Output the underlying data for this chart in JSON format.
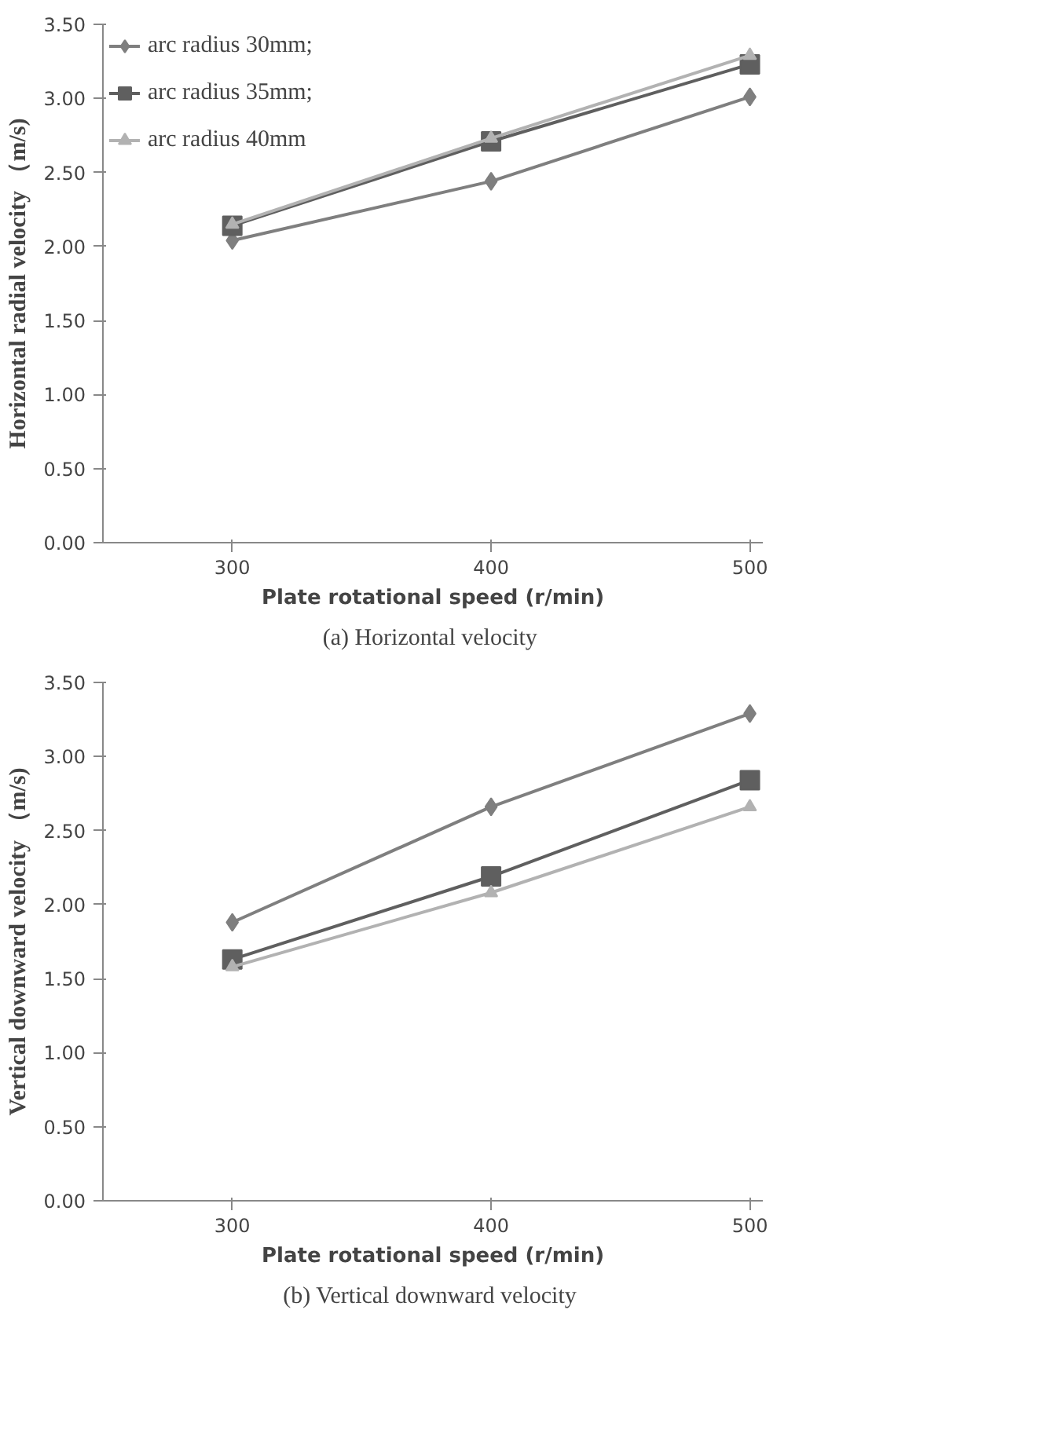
{
  "chart_data": [
    {
      "type": "line",
      "xlabel": "Plate rotational speed (r/min)",
      "ylabel": "Horizontal radial velocity （m/s)",
      "x": [
        300,
        400,
        500
      ],
      "xlim": [
        250,
        505
      ],
      "xticks": [
        300,
        400,
        500
      ],
      "ylim": [
        0,
        3.5
      ],
      "yticks": [
        {
          "value": 0,
          "label": "0.00"
        },
        {
          "value": 0.5,
          "label": "0.50"
        },
        {
          "value": 1,
          "label": "1.00"
        },
        {
          "value": 1.5,
          "label": "1.50"
        },
        {
          "value": 2,
          "label": "2.00"
        },
        {
          "value": 2.5,
          "label": "2.50"
        },
        {
          "value": 3,
          "label": "3.00"
        },
        {
          "value": 3.5,
          "label": "3.50"
        }
      ],
      "grid": false,
      "legend": "top left",
      "series": [
        {
          "name": "arc radius 30mm;",
          "color": "#7f7f7f",
          "marker": "diamond",
          "values": [
            2.04,
            2.44,
            3.01
          ]
        },
        {
          "name": "arc radius 35mm;",
          "color": "#5f5f5f",
          "marker": "square",
          "values": [
            2.14,
            2.71,
            3.23
          ]
        },
        {
          "name": "arc radius 40mm",
          "color": "#b2b2b2",
          "marker": "triangle",
          "values": [
            2.15,
            2.73,
            3.29
          ]
        }
      ],
      "annotations": [
        "(a)  Horizontal velocity"
      ]
    },
    {
      "type": "line",
      "xlabel": "Plate rotational speed (r/min)",
      "ylabel": "Vertical downward velocity （m/s)",
      "x": [
        300,
        400,
        500
      ],
      "xlim": [
        250,
        505
      ],
      "xticks": [
        300,
        400,
        500
      ],
      "ylim": [
        0,
        3.5
      ],
      "yticks": [
        {
          "value": 0,
          "label": "0.00"
        },
        {
          "value": 0.5,
          "label": "0.50"
        },
        {
          "value": 1,
          "label": "1.00"
        },
        {
          "value": 1.5,
          "label": "1.50"
        },
        {
          "value": 2,
          "label": "2.00"
        },
        {
          "value": 2.5,
          "label": "2.50"
        },
        {
          "value": 3,
          "label": "3.00"
        },
        {
          "value": 3.5,
          "label": "3.50"
        }
      ],
      "grid": false,
      "series": [
        {
          "color": "#7f7f7f",
          "marker": "diamond",
          "values": [
            1.88,
            2.66,
            3.29
          ]
        },
        {
          "color": "#5f5f5f",
          "marker": "square",
          "values": [
            1.63,
            2.19,
            2.84
          ]
        },
        {
          "color": "#b2b2b2",
          "marker": "triangle",
          "values": [
            1.58,
            2.08,
            2.66
          ]
        }
      ],
      "annotations": [
        "(b)  Vertical downward velocity"
      ]
    }
  ]
}
